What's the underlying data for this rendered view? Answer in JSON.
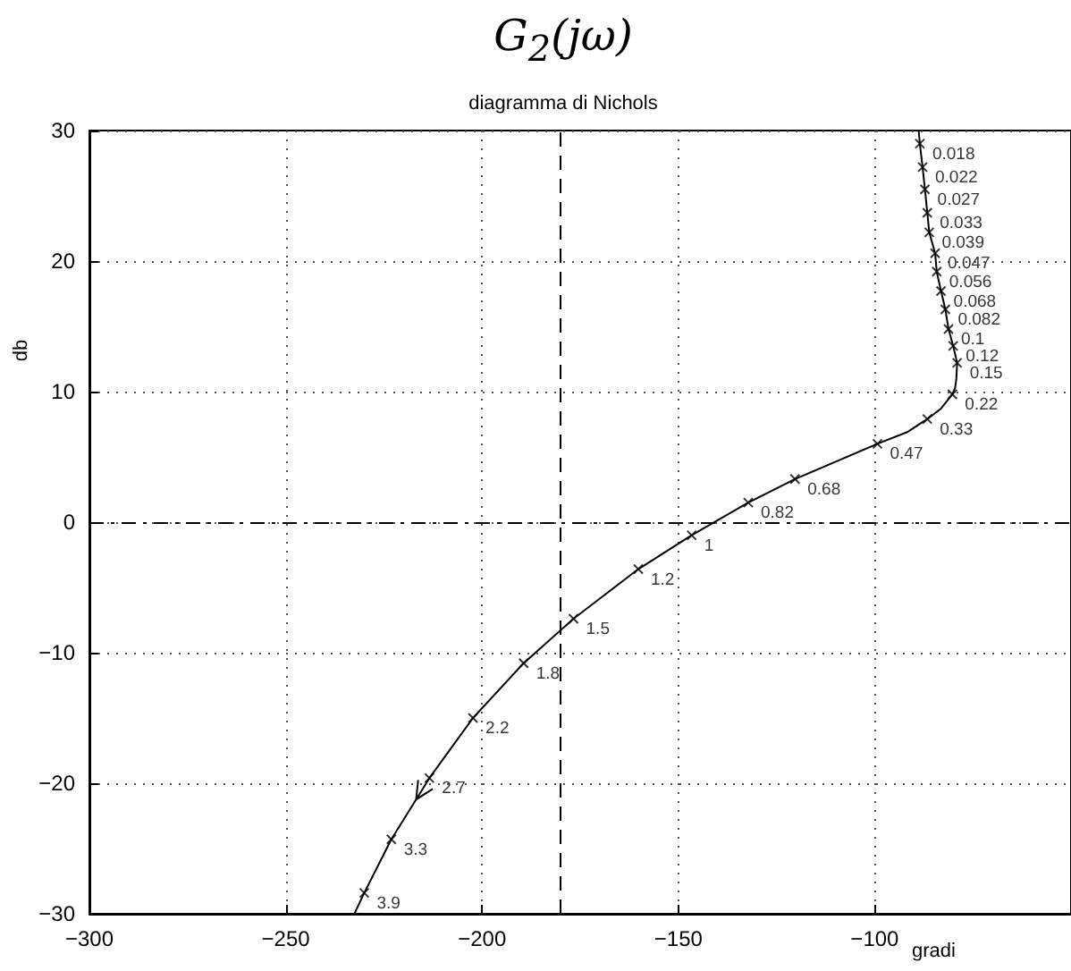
{
  "chart_data": {
    "type": "line",
    "title": "G$_{2}$(jω)",
    "subtitle": "diagramma di Nichols",
    "xlabel": "gradi",
    "ylabel": "db",
    "series": [
      {
        "color": "#000000",
        "x": [
          -88.8,
          -88.5,
          -87.8,
          -87.2,
          -86.6,
          -86.1,
          -84.6,
          -84.2,
          -83.1,
          -82.0,
          -81.2,
          -80.0,
          -79.0,
          -79.2,
          -79.5,
          -80.2,
          -83.1,
          -86.6,
          -91.7,
          -99.3,
          -120.3,
          -132.2,
          -146.6,
          -160.2,
          -176.7,
          -189.4,
          -202.3,
          -213.4,
          -223.1,
          -230.0,
          -232.5
        ],
        "values": [
          30,
          29.0,
          27.2,
          25.5,
          23.7,
          22.2,
          20.6,
          19.2,
          17.7,
          16.3,
          14.8,
          13.5,
          12.2,
          11.0,
          10.3,
          9.8,
          8.7,
          7.9,
          6.9,
          6.0,
          3.3,
          1.5,
          -1.0,
          -3.6,
          -7.4,
          -10.8,
          -15.0,
          -19.6,
          -24.3,
          -28.4,
          -30
        ]
      }
    ],
    "annotations": [
      {
        "text": "0.018",
        "x": -88.5,
        "y": 29.0
      },
      {
        "text": "0.022",
        "x": -87.8,
        "y": 27.2
      },
      {
        "text": "0.027",
        "x": -87.2,
        "y": 25.5
      },
      {
        "text": "0.033",
        "x": -86.6,
        "y": 23.7
      },
      {
        "text": "0.039",
        "x": -86.1,
        "y": 22.2
      },
      {
        "text": "0.047",
        "x": -84.6,
        "y": 20.6
      },
      {
        "text": "0.056",
        "x": -84.2,
        "y": 19.2
      },
      {
        "text": "0.068",
        "x": -83.1,
        "y": 17.7
      },
      {
        "text": "0.082",
        "x": -82.0,
        "y": 16.3
      },
      {
        "text": "0.1",
        "x": -81.2,
        "y": 14.8
      },
      {
        "text": "0.12",
        "x": -80.0,
        "y": 13.5
      },
      {
        "text": "0.15",
        "x": -79.0,
        "y": 12.2
      },
      {
        "text": "0.22",
        "x": -80.2,
        "y": 9.8
      },
      {
        "text": "0.33",
        "x": -86.6,
        "y": 7.9
      },
      {
        "text": "0.47",
        "x": -99.3,
        "y": 6.0
      },
      {
        "text": "0.68",
        "x": -120.3,
        "y": 3.3
      },
      {
        "text": "0.82",
        "x": -132.2,
        "y": 1.5
      },
      {
        "text": "1",
        "x": -146.6,
        "y": -1.0
      },
      {
        "text": "1.2",
        "x": -160.2,
        "y": -3.6
      },
      {
        "text": "1.5",
        "x": -176.7,
        "y": -7.4
      },
      {
        "text": "1.8",
        "x": -189.4,
        "y": -10.8
      },
      {
        "text": "2.2",
        "x": -202.3,
        "y": -15.0
      },
      {
        "text": "2.7",
        "x": -213.4,
        "y": -19.6
      },
      {
        "text": "3.3",
        "x": -223.1,
        "y": -24.3
      },
      {
        "text": "3.9",
        "x": -230.0,
        "y": -28.4
      }
    ],
    "ref_lines": [
      {
        "axis": "x",
        "value": -180,
        "line_style": "dashed"
      },
      {
        "axis": "y",
        "value": 0,
        "line_style": "dashdot"
      }
    ],
    "xlim": [
      -300,
      -50
    ],
    "ylim": [
      -30,
      30
    ],
    "xticks": [
      -300,
      -250,
      -200,
      -150,
      -100
    ],
    "yticks": [
      -30,
      -20,
      -10,
      0,
      10,
      20,
      30
    ],
    "grid": true,
    "marker": "cross",
    "line_style": "solid"
  }
}
